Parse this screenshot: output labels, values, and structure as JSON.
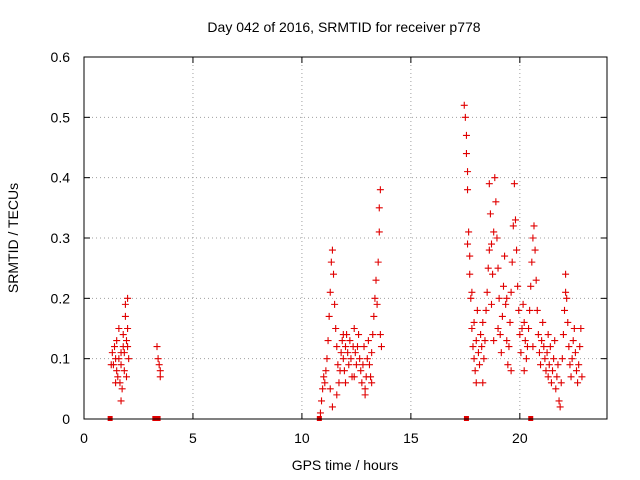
{
  "chart_data": {
    "type": "scatter",
    "title": "Day 042 of 2016, SRMTID for receiver p778",
    "xlabel": "GPS time / hours",
    "ylabel": "SRMTID / TECUs",
    "xlim": [
      0,
      24
    ],
    "ylim": [
      0,
      0.6
    ],
    "grid": true,
    "xticks": [
      0,
      5,
      10,
      15,
      20
    ],
    "yticks": [
      0,
      0.1,
      0.2,
      0.3,
      0.4,
      0.5,
      0.6
    ],
    "xtick_labels": [
      "0",
      "5",
      "10",
      "15",
      "20"
    ],
    "ytick_labels": [
      "0",
      "0.1",
      "0.2",
      "0.3",
      "0.4",
      "0.5",
      "0.6"
    ],
    "marker": "+",
    "series": [
      {
        "name": "SRMTID",
        "color": "#e00000",
        "points": [
          [
            1.3,
            0.11
          ],
          [
            1.35,
            0.09
          ],
          [
            1.4,
            0.12
          ],
          [
            1.45,
            0.1
          ],
          [
            1.5,
            0.13
          ],
          [
            1.5,
            0.08
          ],
          [
            1.55,
            0.07
          ],
          [
            1.6,
            0.15
          ],
          [
            1.6,
            0.1
          ],
          [
            1.65,
            0.06
          ],
          [
            1.7,
            0.11
          ],
          [
            1.7,
            0.09
          ],
          [
            1.75,
            0.05
          ],
          [
            1.8,
            0.12
          ],
          [
            1.8,
            0.14
          ],
          [
            1.85,
            0.08
          ],
          [
            1.9,
            0.19
          ],
          [
            1.9,
            0.17
          ],
          [
            1.95,
            0.13
          ],
          [
            1.95,
            0.07
          ],
          [
            2.0,
            0.2
          ],
          [
            2.0,
            0.15
          ],
          [
            2.05,
            0.1
          ],
          [
            1.7,
            0.03
          ],
          [
            1.25,
            0.09
          ],
          [
            1.45,
            0.06
          ],
          [
            1.85,
            0.11
          ],
          [
            2.0,
            0.12
          ],
          [
            3.35,
            0.12
          ],
          [
            3.4,
            0.1
          ],
          [
            3.45,
            0.09
          ],
          [
            3.5,
            0.08
          ],
          [
            3.5,
            0.07
          ],
          [
            10.85,
            0.01
          ],
          [
            10.9,
            0.03
          ],
          [
            10.95,
            0.05
          ],
          [
            11.0,
            0.07
          ],
          [
            11.05,
            0.06
          ],
          [
            11.1,
            0.08
          ],
          [
            11.15,
            0.1
          ],
          [
            11.2,
            0.13
          ],
          [
            11.25,
            0.17
          ],
          [
            11.3,
            0.21
          ],
          [
            11.35,
            0.26
          ],
          [
            11.4,
            0.28
          ],
          [
            11.45,
            0.24
          ],
          [
            11.5,
            0.19
          ],
          [
            11.55,
            0.15
          ],
          [
            11.6,
            0.12
          ],
          [
            11.65,
            0.09
          ],
          [
            11.7,
            0.06
          ],
          [
            11.75,
            0.08
          ],
          [
            11.8,
            0.11
          ],
          [
            11.85,
            0.13
          ],
          [
            11.9,
            0.1
          ],
          [
            11.95,
            0.08
          ],
          [
            12.0,
            0.12
          ],
          [
            12.05,
            0.14
          ],
          [
            12.1,
            0.11
          ],
          [
            12.15,
            0.09
          ],
          [
            12.2,
            0.13
          ],
          [
            12.25,
            0.1
          ],
          [
            12.3,
            0.07
          ],
          [
            12.35,
            0.12
          ],
          [
            12.4,
            0.15
          ],
          [
            12.45,
            0.11
          ],
          [
            12.5,
            0.09
          ],
          [
            12.55,
            0.12
          ],
          [
            12.6,
            0.14
          ],
          [
            12.65,
            0.1
          ],
          [
            12.7,
            0.08
          ],
          [
            12.75,
            0.06
          ],
          [
            12.8,
            0.09
          ],
          [
            12.85,
            0.12
          ],
          [
            12.9,
            0.05
          ],
          [
            12.95,
            0.07
          ],
          [
            13.0,
            0.1
          ],
          [
            13.05,
            0.13
          ],
          [
            13.1,
            0.09
          ],
          [
            13.15,
            0.07
          ],
          [
            13.2,
            0.11
          ],
          [
            13.25,
            0.14
          ],
          [
            13.3,
            0.17
          ],
          [
            13.35,
            0.2
          ],
          [
            13.4,
            0.23
          ],
          [
            13.45,
            0.19
          ],
          [
            13.5,
            0.26
          ],
          [
            13.55,
            0.31
          ],
          [
            13.55,
            0.35
          ],
          [
            13.6,
            0.38
          ],
          [
            13.6,
            0.14
          ],
          [
            13.65,
            0.12
          ],
          [
            11.4,
            0.02
          ],
          [
            11.6,
            0.04
          ],
          [
            12.0,
            0.06
          ],
          [
            12.9,
            0.04
          ],
          [
            11.3,
            0.05
          ],
          [
            12.4,
            0.07
          ],
          [
            11.9,
            0.14
          ],
          [
            13.2,
            0.06
          ],
          [
            17.45,
            0.52
          ],
          [
            17.5,
            0.5
          ],
          [
            17.55,
            0.47
          ],
          [
            17.55,
            0.44
          ],
          [
            17.6,
            0.41
          ],
          [
            17.6,
            0.38
          ],
          [
            17.65,
            0.31
          ],
          [
            17.7,
            0.27
          ],
          [
            17.7,
            0.24
          ],
          [
            17.75,
            0.2
          ],
          [
            17.8,
            0.15
          ],
          [
            17.85,
            0.12
          ],
          [
            17.9,
            0.1
          ],
          [
            17.95,
            0.08
          ],
          [
            18.0,
            0.13
          ],
          [
            18.05,
            0.18
          ],
          [
            18.1,
            0.11
          ],
          [
            18.15,
            0.09
          ],
          [
            18.2,
            0.14
          ],
          [
            18.25,
            0.12
          ],
          [
            18.3,
            0.16
          ],
          [
            18.35,
            0.1
          ],
          [
            18.4,
            0.13
          ],
          [
            18.45,
            0.18
          ],
          [
            18.5,
            0.21
          ],
          [
            18.55,
            0.25
          ],
          [
            18.6,
            0.28
          ],
          [
            18.6,
            0.39
          ],
          [
            18.65,
            0.34
          ],
          [
            18.7,
            0.29
          ],
          [
            18.75,
            0.24
          ],
          [
            18.8,
            0.31
          ],
          [
            18.85,
            0.4
          ],
          [
            18.9,
            0.36
          ],
          [
            18.95,
            0.3
          ],
          [
            19.0,
            0.25
          ],
          [
            19.05,
            0.2
          ],
          [
            19.1,
            0.14
          ],
          [
            19.15,
            0.11
          ],
          [
            19.2,
            0.17
          ],
          [
            19.25,
            0.22
          ],
          [
            19.3,
            0.27
          ],
          [
            19.35,
            0.19
          ],
          [
            19.4,
            0.13
          ],
          [
            19.45,
            0.09
          ],
          [
            19.5,
            0.12
          ],
          [
            19.55,
            0.16
          ],
          [
            19.6,
            0.21
          ],
          [
            19.65,
            0.26
          ],
          [
            19.7,
            0.32
          ],
          [
            19.75,
            0.39
          ],
          [
            19.8,
            0.33
          ],
          [
            19.85,
            0.28
          ],
          [
            19.9,
            0.22
          ],
          [
            19.95,
            0.18
          ],
          [
            20.0,
            0.14
          ],
          [
            20.05,
            0.11
          ],
          [
            20.1,
            0.15
          ],
          [
            20.15,
            0.19
          ],
          [
            20.2,
            0.16
          ],
          [
            20.25,
            0.13
          ],
          [
            20.3,
            0.1
          ],
          [
            20.35,
            0.12
          ],
          [
            20.4,
            0.15
          ],
          [
            20.45,
            0.18
          ],
          [
            20.5,
            0.22
          ],
          [
            20.55,
            0.26
          ],
          [
            20.6,
            0.3
          ],
          [
            20.65,
            0.32
          ],
          [
            20.7,
            0.28
          ],
          [
            20.75,
            0.23
          ],
          [
            20.8,
            0.18
          ],
          [
            20.85,
            0.14
          ],
          [
            20.9,
            0.11
          ],
          [
            20.95,
            0.09
          ],
          [
            21.0,
            0.13
          ],
          [
            21.05,
            0.16
          ],
          [
            21.1,
            0.12
          ],
          [
            21.15,
            0.1
          ],
          [
            21.2,
            0.08
          ],
          [
            21.25,
            0.11
          ],
          [
            21.3,
            0.07
          ],
          [
            21.35,
            0.09
          ],
          [
            21.4,
            0.12
          ],
          [
            21.45,
            0.06
          ],
          [
            21.5,
            0.08
          ],
          [
            21.55,
            0.1
          ],
          [
            21.6,
            0.13
          ],
          [
            21.65,
            0.05
          ],
          [
            21.7,
            0.07
          ],
          [
            21.75,
            0.09
          ],
          [
            21.8,
            0.03
          ],
          [
            21.85,
            0.02
          ],
          [
            21.9,
            0.06
          ],
          [
            21.95,
            0.1
          ],
          [
            22.0,
            0.14
          ],
          [
            22.05,
            0.18
          ],
          [
            22.1,
            0.21
          ],
          [
            22.1,
            0.24
          ],
          [
            22.15,
            0.2
          ],
          [
            22.2,
            0.16
          ],
          [
            22.25,
            0.12
          ],
          [
            22.3,
            0.09
          ],
          [
            22.35,
            0.07
          ],
          [
            22.4,
            0.1
          ],
          [
            22.45,
            0.13
          ],
          [
            22.5,
            0.15
          ],
          [
            22.55,
            0.11
          ],
          [
            22.6,
            0.08
          ],
          [
            22.65,
            0.06
          ],
          [
            22.7,
            0.09
          ],
          [
            22.75,
            0.12
          ],
          [
            22.8,
            0.15
          ],
          [
            22.85,
            0.07
          ],
          [
            17.6,
            0.29
          ],
          [
            17.8,
            0.21
          ],
          [
            18.0,
            0.06
          ],
          [
            18.8,
            0.13
          ],
          [
            19.6,
            0.08
          ],
          [
            20.2,
            0.08
          ],
          [
            18.3,
            0.06
          ],
          [
            19.0,
            0.15
          ],
          [
            17.9,
            0.16
          ],
          [
            18.7,
            0.19
          ],
          [
            19.4,
            0.2
          ],
          [
            20.6,
            0.12
          ],
          [
            21.3,
            0.14
          ]
        ]
      }
    ],
    "axis_markers": {
      "color": "#e00000",
      "x": [
        1.2,
        3.25,
        3.4,
        10.8,
        17.55,
        20.5
      ]
    }
  }
}
